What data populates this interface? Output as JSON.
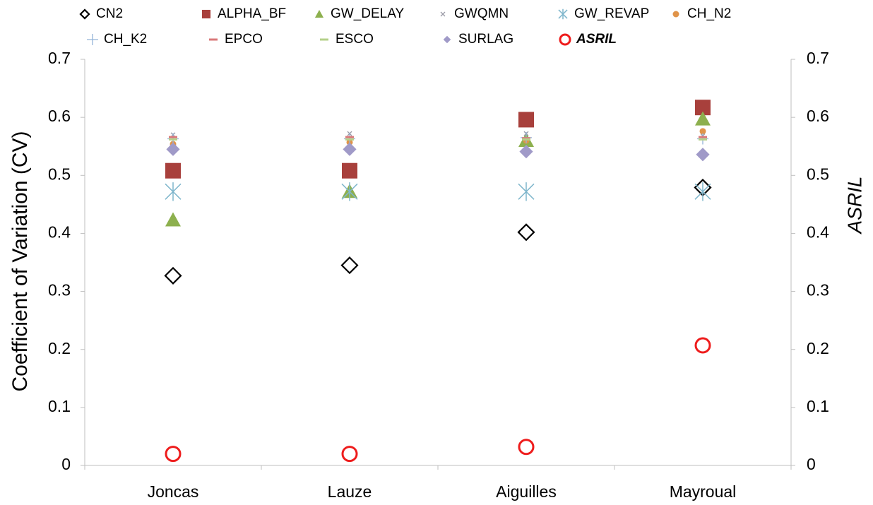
{
  "chart_data": {
    "type": "scatter",
    "y_axis_label": "Coefficient of Variation (CV)",
    "y2_axis_label": "ASRIL",
    "categories": [
      "Joncas",
      "Lauze",
      "Aiguilles",
      "Mayroual"
    ],
    "ylim": [
      0,
      0.7
    ],
    "yticks": [
      0,
      0.1,
      0.2,
      0.3,
      0.4,
      0.5,
      0.6,
      0.7
    ],
    "y2lim": [
      0,
      0.7
    ],
    "y2ticks": [
      0,
      0.1,
      0.2,
      0.3,
      0.4,
      0.5,
      0.6,
      0.7
    ],
    "grid": false,
    "series": [
      {
        "name": "CN2",
        "color": "#000000",
        "marker": "diamond-open",
        "values": [
          0.327,
          0.345,
          0.402,
          0.479
        ]
      },
      {
        "name": "ALPHA_BF",
        "color": "#a8403c",
        "marker": "square",
        "values": [
          0.508,
          0.508,
          0.596,
          0.617
        ]
      },
      {
        "name": "GW_DELAY",
        "color": "#8db04e",
        "marker": "triangle",
        "values": [
          0.423,
          0.472,
          0.56,
          0.597
        ]
      },
      {
        "name": "GWQMN",
        "color": "#9a9aa6",
        "marker": "x",
        "values": [
          0.57,
          0.572,
          0.572,
          0.568
        ]
      },
      {
        "name": "GW_REVAP",
        "color": "#7fb6cc",
        "marker": "asterisk",
        "values": [
          0.472,
          0.472,
          0.472,
          0.472
        ]
      },
      {
        "name": "CH_N2",
        "color": "#e0944a",
        "marker": "circle",
        "values": [
          0.554,
          0.557,
          0.56,
          0.576
        ]
      },
      {
        "name": "CH_K2",
        "color": "#94b4d8",
        "marker": "plus",
        "values": [
          0.563,
          0.563,
          0.565,
          0.563
        ]
      },
      {
        "name": "EPCO",
        "color": "#d9787a",
        "marker": "dash",
        "values": [
          0.566,
          0.566,
          0.564,
          0.566
        ]
      },
      {
        "name": "ESCO",
        "color": "#b4d08a",
        "marker": "dash",
        "values": [
          0.562,
          0.562,
          0.562,
          0.562
        ]
      },
      {
        "name": "SURLAG",
        "color": "#a09ac8",
        "marker": "diamond-small",
        "values": [
          0.545,
          0.545,
          0.541,
          0.536
        ]
      },
      {
        "name": "ASRIL",
        "color": "#ee1c1c",
        "marker": "circle-open",
        "axis": "y2",
        "values": [
          0.02,
          0.02,
          0.032,
          0.207
        ]
      }
    ]
  }
}
